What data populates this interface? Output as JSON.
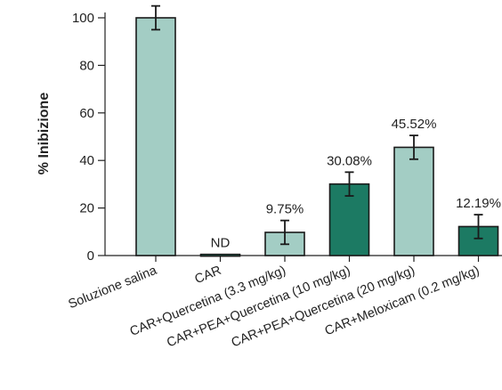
{
  "chart_data": {
    "type": "bar",
    "ylabel": "% Inibizione",
    "xlabel": "",
    "ylim": [
      0,
      100
    ],
    "yticks": [
      0,
      20,
      40,
      60,
      80,
      100
    ],
    "grid": false,
    "categories": [
      "Soluzione salina",
      "CAR",
      "CAR+Quercetina (3.3 mg/kg)",
      "CAR+PEA+Quercetina (10 mg/kg)",
      "CAR+PEA+Quercetina (20 mg/kg)",
      "CAR+Meloxicam (0.2 mg/kg)"
    ],
    "values": [
      100,
      0.5,
      9.75,
      30.08,
      45.52,
      12.19
    ],
    "errors": [
      5,
      0,
      5,
      5,
      5,
      5
    ],
    "data_labels": [
      "",
      "ND",
      "9.75%",
      "30.08%",
      "45.52%",
      "12.19%"
    ],
    "bar_colors": [
      "#a3cdc4",
      "#1c7a63",
      "#a3cdc4",
      "#1c7a63",
      "#a3cdc4",
      "#1c7a63"
    ]
  }
}
